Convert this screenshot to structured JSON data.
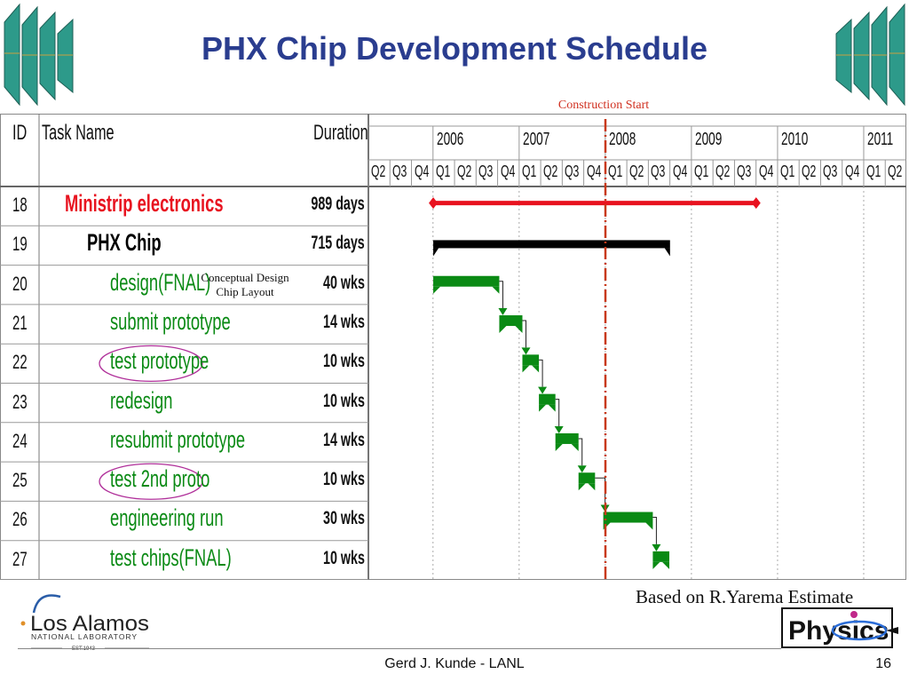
{
  "slide": {
    "title": "PHX Chip Development Schedule",
    "construction_label": "Construction Start",
    "based_on": "Based on R.Yarema Estimate",
    "footer": "Gerd J. Kunde - LANL",
    "page_number": "16"
  },
  "gantt": {
    "headers": {
      "id": "ID",
      "task": "Task Name",
      "duration": "Duration"
    },
    "years": [
      "2006",
      "2007",
      "2008",
      "2009",
      "2010",
      "2011"
    ],
    "quarters": [
      "Q2",
      "Q3",
      "Q4",
      "Q1",
      "Q2",
      "Q3",
      "Q4",
      "Q1",
      "Q2",
      "Q3",
      "Q4",
      "Q1",
      "Q2",
      "Q3",
      "Q4",
      "Q1",
      "Q2",
      "Q3",
      "Q4",
      "Q1",
      "Q2",
      "Q3",
      "Q4",
      "Q1",
      "Q2"
    ],
    "timeline_start": "2005-04-01",
    "construction_start": "2008-01-01",
    "tasks": [
      {
        "id": "18",
        "name": "Ministrip electronics",
        "duration": "989 days",
        "color": "#e8121f",
        "type": "summary",
        "start": "2006-01-01",
        "end": "2009-10-01"
      },
      {
        "id": "19",
        "name": "PHX Chip",
        "duration": "715 days",
        "color": "#000000",
        "type": "summary",
        "start": "2006-01-01",
        "end": "2008-10-01"
      },
      {
        "id": "20",
        "name": "design(FNAL)",
        "duration": "40 wks",
        "color": "#0a8a14",
        "type": "task",
        "start": "2006-01-01",
        "end": "2006-10-08"
      },
      {
        "id": "21",
        "name": "submit prototype",
        "duration": "14 wks",
        "color": "#0a8a14",
        "type": "task",
        "start": "2006-10-08",
        "end": "2007-01-14"
      },
      {
        "id": "22",
        "name": "test prototype",
        "duration": "10 wks",
        "color": "#0a8a14",
        "type": "task",
        "start": "2007-01-14",
        "end": "2007-03-25"
      },
      {
        "id": "23",
        "name": "redesign",
        "duration": "10 wks",
        "color": "#0a8a14",
        "type": "task",
        "start": "2007-03-25",
        "end": "2007-06-03"
      },
      {
        "id": "24",
        "name": "resubmit prototype",
        "duration": "14 wks",
        "color": "#0a8a14",
        "type": "task",
        "start": "2007-06-03",
        "end": "2007-09-09"
      },
      {
        "id": "25",
        "name": "test 2nd proto",
        "duration": "10 wks",
        "color": "#0a8a14",
        "type": "task",
        "start": "2007-09-09",
        "end": "2007-11-18"
      },
      {
        "id": "26",
        "name": "engineering run",
        "duration": "30 wks",
        "color": "#0a8a14",
        "type": "task",
        "start": "2007-12-23",
        "end": "2008-07-20"
      },
      {
        "id": "27",
        "name": "test chips(FNAL)",
        "duration": "10 wks",
        "color": "#0a8a14",
        "type": "task",
        "start": "2008-07-20",
        "end": "2008-09-28"
      }
    ],
    "annotation": {
      "line1": "Conceptual Design",
      "line2": "Chip Layout"
    },
    "circled_ids": [
      "22",
      "25"
    ]
  },
  "logos": {
    "lanl_name": "Los Alamos",
    "lanl_sub": "NATIONAL LABORATORY",
    "lanl_est": "EST.1943",
    "physics": "Physics"
  }
}
